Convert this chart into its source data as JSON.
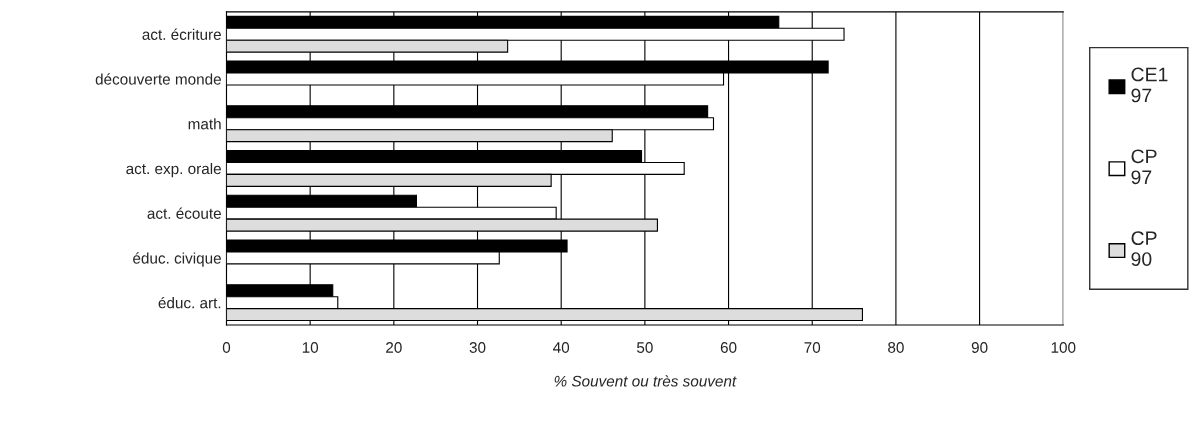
{
  "chart_data": {
    "type": "bar",
    "orientation": "horizontal",
    "xlabel": "% Souvent ou très souvent",
    "categories": [
      "act. écriture",
      "découverte monde",
      "math",
      "act. exp. orale",
      "act. écoute",
      "éduc. civique",
      "éduc. art."
    ],
    "series": [
      {
        "name": "CE1\n97",
        "color": "#000000",
        "values": [
          66.0,
          71.9,
          57.5,
          49.6,
          22.7,
          40.7,
          12.7
        ]
      },
      {
        "name": "CP\n97",
        "color": "#ffffff",
        "values": [
          73.8,
          59.4,
          58.2,
          54.7,
          39.4,
          32.6,
          13.3
        ]
      },
      {
        "name": "CP\n90",
        "color": "#dddddd",
        "values": [
          33.6,
          null,
          46.1,
          38.8,
          51.5,
          null,
          76.0
        ]
      }
    ],
    "xlim": [
      0,
      100
    ],
    "xticks": [
      0,
      10,
      20,
      30,
      40,
      50,
      60,
      70,
      80,
      90,
      100
    ],
    "grid": "x",
    "legend": "right"
  }
}
